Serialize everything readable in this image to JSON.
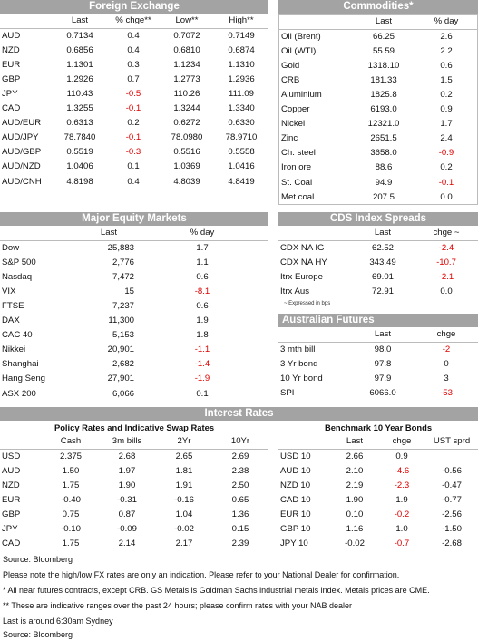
{
  "fx": {
    "title": "Foreign Exchange",
    "headers": [
      "",
      "Last",
      "% chge**",
      "Low**",
      "High**"
    ],
    "rows": [
      [
        "AUD",
        "0.7134",
        "0.4",
        "0.7072",
        "0.7149"
      ],
      [
        "NZD",
        "0.6856",
        "0.4",
        "0.6810",
        "0.6874"
      ],
      [
        "EUR",
        "1.1301",
        "0.3",
        "1.1234",
        "1.1310"
      ],
      [
        "GBP",
        "1.2926",
        "0.7",
        "1.2773",
        "1.2936"
      ],
      [
        "JPY",
        "110.43",
        "-0.5",
        "110.26",
        "111.09"
      ],
      [
        "CAD",
        "1.3255",
        "-0.1",
        "1.3244",
        "1.3340"
      ],
      [
        "AUD/EUR",
        "0.6313",
        "0.2",
        "0.6272",
        "0.6330"
      ],
      [
        "AUD/JPY",
        "78.7840",
        "-0.1",
        "78.0980",
        "78.9710"
      ],
      [
        "AUD/GBP",
        "0.5519",
        "-0.3",
        "0.5516",
        "0.5558"
      ],
      [
        "AUD/NZD",
        "1.0406",
        "0.1",
        "1.0369",
        "1.0416"
      ],
      [
        "AUD/CNH",
        "4.8198",
        "0.4",
        "4.8039",
        "4.8419"
      ]
    ]
  },
  "commodities": {
    "title": "Commodities*",
    "headers": [
      "",
      "Last",
      "% day"
    ],
    "rows": [
      [
        "Oil (Brent)",
        "66.25",
        "2.6"
      ],
      [
        "Oil (WTI)",
        "55.59",
        "2.2"
      ],
      [
        "Gold",
        "1318.10",
        "0.6"
      ],
      [
        "CRB",
        "181.33",
        "1.5"
      ],
      [
        "Aluminium",
        "1825.8",
        "0.2"
      ],
      [
        "Copper",
        "6193.0",
        "0.9"
      ],
      [
        "Nickel",
        "12321.0",
        "1.7"
      ],
      [
        "Zinc",
        "2651.5",
        "2.4"
      ],
      [
        "Ch. steel",
        "3658.0",
        "-0.9"
      ],
      [
        "Iron ore",
        "88.6",
        "0.2"
      ],
      [
        "St. Coal",
        "94.9",
        "-0.1"
      ],
      [
        "Met.coal",
        "207.5",
        "0.0"
      ]
    ]
  },
  "equity": {
    "title": "Major Equity Markets",
    "headers": [
      "",
      "Last",
      "% day"
    ],
    "rows": [
      [
        "Dow",
        "25,883",
        "1.7"
      ],
      [
        "S&P 500",
        "2,776",
        "1.1"
      ],
      [
        "Nasdaq",
        "7,472",
        "0.6"
      ],
      [
        "VIX",
        "15",
        "-8.1"
      ],
      [
        "FTSE",
        "7,237",
        "0.6"
      ],
      [
        "DAX",
        "11,300",
        "1.9"
      ],
      [
        "CAC 40",
        "5,153",
        "1.8"
      ],
      [
        "Nikkei",
        "20,901",
        "-1.1"
      ],
      [
        "Shanghai",
        "2,682",
        "-1.4"
      ],
      [
        "Hang Seng",
        "27,901",
        "-1.9"
      ],
      [
        "ASX 200",
        "6,066",
        "0.1"
      ]
    ]
  },
  "cds": {
    "title": "CDS Index Spreads",
    "headers": [
      "",
      "Last",
      "chge ~"
    ],
    "rows": [
      [
        "CDX NA IG",
        "62.52",
        "-2.4"
      ],
      [
        "CDX NA HY",
        "343.49",
        "-10.7"
      ],
      [
        "Itrx Europe",
        "69.01",
        "-2.1"
      ],
      [
        "Itrx Aus",
        "72.91",
        "0.0"
      ]
    ],
    "note": "~ Expressed in bps"
  },
  "futures": {
    "title": "Australian Futures",
    "headers": [
      "",
      "Last",
      "chge"
    ],
    "rows": [
      [
        "3 mth bill",
        "98.0",
        "-2"
      ],
      [
        "3 Yr bond",
        "97.8",
        "0"
      ],
      [
        "10 Yr bond",
        "97.9",
        "3"
      ],
      [
        "SPI",
        "6066.0",
        "-53"
      ]
    ]
  },
  "rates": {
    "title": "Interest Rates",
    "policy": {
      "subtitle": "Policy Rates and Indicative Swap Rates",
      "headers": [
        "",
        "Cash",
        "3m bills",
        "2Yr",
        "10Yr"
      ],
      "rows": [
        [
          "USD",
          "2.375",
          "2.68",
          "2.65",
          "2.69"
        ],
        [
          "AUD",
          "1.50",
          "1.97",
          "1.81",
          "2.38"
        ],
        [
          "NZD",
          "1.75",
          "1.90",
          "1.91",
          "2.50"
        ],
        [
          "EUR",
          "-0.40",
          "-0.31",
          "-0.16",
          "0.65"
        ],
        [
          "GBP",
          "0.75",
          "0.87",
          "1.04",
          "1.36"
        ],
        [
          "JPY",
          "-0.10",
          "-0.09",
          "-0.02",
          "0.15"
        ],
        [
          "CAD",
          "1.75",
          "2.14",
          "2.17",
          "2.39"
        ]
      ]
    },
    "bonds": {
      "subtitle": "Benchmark 10 Year Bonds",
      "headers": [
        "",
        "Last",
        "chge",
        "UST sprd"
      ],
      "rows": [
        [
          "USD 10",
          "2.66",
          "0.9",
          ""
        ],
        [
          "AUD 10",
          "2.10",
          "-4.6",
          "-0.56"
        ],
        [
          "NZD 10",
          "2.19",
          "-2.3",
          "-0.47"
        ],
        [
          "CAD 10",
          "1.90",
          "1.9",
          "-0.77"
        ],
        [
          "EUR 10",
          "0.10",
          "-0.2",
          "-2.56"
        ],
        [
          "GBP 10",
          "1.16",
          "1.0",
          "-1.50"
        ],
        [
          "JPY 10",
          "-0.02",
          "-0.7",
          "-2.68"
        ]
      ]
    }
  },
  "footnotes": [
    "Source: Bloomberg",
    "Please note the high/low FX rates are only an indication. Please refer to your National Dealer for confirmation.",
    "* All near futures contracts, except CRB. GS Metals is Goldman Sachs industrial metals index. Metals prices are CME.",
    "** These are indicative ranges over the past 24 hours; please confirm rates with your NAB dealer",
    "Last is around 6:30am Sydney",
    "Source: Bloomberg"
  ],
  "colors": {
    "header_bg": "#a3a3a3",
    "negative": "#e00000"
  }
}
